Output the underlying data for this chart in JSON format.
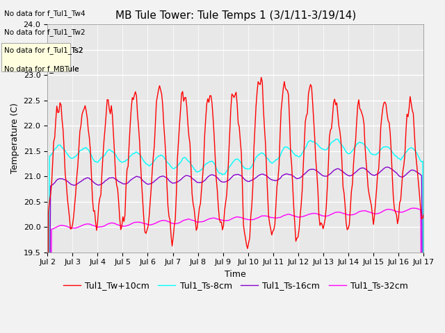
{
  "title": "MB Tule Tower: Tule Temps 1 (3/1/11-3/19/14)",
  "xlabel": "Time",
  "ylabel": "Temperature (C)",
  "ylim": [
    19.5,
    24.0
  ],
  "yticks": [
    19.5,
    20.0,
    20.5,
    21.0,
    21.5,
    22.0,
    22.5,
    23.0,
    23.5,
    24.0
  ],
  "bg_color": "#e8e8e8",
  "legend_entries": [
    "Tul1_Tw+10cm",
    "Tul1_Ts-8cm",
    "Tul1_Ts-16cm",
    "Tul1_Ts-32cm"
  ],
  "line_colors": [
    "red",
    "cyan",
    "#8800cc",
    "magenta"
  ],
  "no_data_text": [
    "No data for f_Tul1_Tw4",
    "No data for f_Tul1_Tw2",
    "No data for f_Tul1_Ts2",
    "No data for f_MBTule"
  ],
  "title_fontsize": 11,
  "tick_fontsize": 8,
  "label_fontsize": 9,
  "legend_fontsize": 9
}
